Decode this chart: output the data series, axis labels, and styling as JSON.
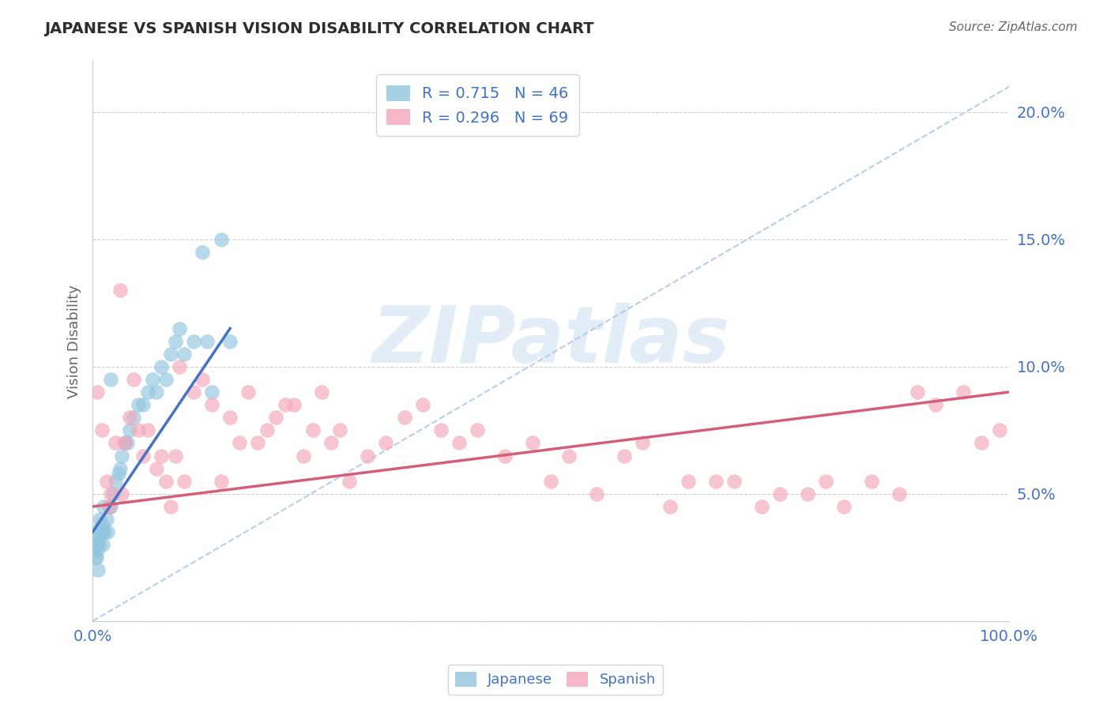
{
  "title": "JAPANESE VS SPANISH VISION DISABILITY CORRELATION CHART",
  "source_text": "Source: ZipAtlas.com",
  "ylabel": "Vision Disability",
  "xlim": [
    0,
    100
  ],
  "ylim": [
    0,
    22
  ],
  "yticks": [
    0,
    5,
    10,
    15,
    20
  ],
  "ytick_labels": [
    "",
    "5.0%",
    "10.0%",
    "15.0%",
    "20.0%"
  ],
  "xticks": [
    0,
    100
  ],
  "xtick_labels": [
    "0.0%",
    "100.0%"
  ],
  "title_color": "#2d2d2d",
  "axis_color": "#4472c4",
  "japanese_color": "#92c5de",
  "spanish_color": "#f4a7b9",
  "japanese_line_color": "#4472c4",
  "spanish_line_color": "#d45f7a",
  "dashed_line_color": "#b0c8e8",
  "grid_color": "#d0d0d0",
  "watermark_color": "#c8ddf0",
  "background_color": "#ffffff",
  "legend_japanese_label": "R = 0.715   N = 46",
  "legend_spanish_label": "R = 0.296   N = 69",
  "japanese_x": [
    0.2,
    0.3,
    0.4,
    0.5,
    0.6,
    0.7,
    0.8,
    0.9,
    1.0,
    1.1,
    1.2,
    1.3,
    1.5,
    1.6,
    1.8,
    2.0,
    2.2,
    2.5,
    2.8,
    3.0,
    3.2,
    3.5,
    3.8,
    4.0,
    4.5,
    5.0,
    5.5,
    6.0,
    6.5,
    7.0,
    7.5,
    8.0,
    8.5,
    9.0,
    9.5,
    10.0,
    11.0,
    12.0,
    12.5,
    13.0,
    14.0,
    15.0,
    0.4,
    0.6,
    1.0,
    2.0
  ],
  "japanese_y": [
    3.5,
    2.5,
    3.0,
    2.8,
    3.2,
    3.0,
    4.0,
    3.5,
    3.8,
    3.0,
    4.5,
    3.5,
    4.0,
    3.5,
    4.5,
    4.5,
    5.0,
    5.5,
    5.8,
    6.0,
    6.5,
    7.0,
    7.0,
    7.5,
    8.0,
    8.5,
    8.5,
    9.0,
    9.5,
    9.0,
    10.0,
    9.5,
    10.5,
    11.0,
    11.5,
    10.5,
    11.0,
    14.5,
    11.0,
    9.0,
    15.0,
    11.0,
    2.5,
    2.0,
    3.5,
    9.5
  ],
  "spanish_x": [
    0.5,
    1.0,
    1.5,
    2.0,
    2.5,
    3.0,
    3.5,
    4.0,
    4.5,
    5.0,
    5.5,
    6.0,
    7.0,
    7.5,
    8.0,
    9.0,
    9.5,
    10.0,
    11.0,
    12.0,
    13.0,
    14.0,
    15.0,
    16.0,
    17.0,
    18.0,
    19.0,
    20.0,
    21.0,
    22.0,
    23.0,
    24.0,
    25.0,
    26.0,
    27.0,
    28.0,
    30.0,
    32.0,
    34.0,
    36.0,
    38.0,
    40.0,
    42.0,
    45.0,
    48.0,
    50.0,
    52.0,
    55.0,
    58.0,
    60.0,
    63.0,
    65.0,
    68.0,
    70.0,
    73.0,
    75.0,
    78.0,
    80.0,
    82.0,
    85.0,
    88.0,
    90.0,
    92.0,
    95.0,
    97.0,
    99.0,
    1.8,
    3.2,
    8.5
  ],
  "spanish_y": [
    9.0,
    7.5,
    5.5,
    5.0,
    7.0,
    13.0,
    7.0,
    8.0,
    9.5,
    7.5,
    6.5,
    7.5,
    6.0,
    6.5,
    5.5,
    6.5,
    10.0,
    5.5,
    9.0,
    9.5,
    8.5,
    5.5,
    8.0,
    7.0,
    9.0,
    7.0,
    7.5,
    8.0,
    8.5,
    8.5,
    6.5,
    7.5,
    9.0,
    7.0,
    7.5,
    5.5,
    6.5,
    7.0,
    8.0,
    8.5,
    7.5,
    7.0,
    7.5,
    6.5,
    7.0,
    5.5,
    6.5,
    5.0,
    6.5,
    7.0,
    4.5,
    5.5,
    5.5,
    5.5,
    4.5,
    5.0,
    5.0,
    5.5,
    4.5,
    5.5,
    5.0,
    9.0,
    8.5,
    9.0,
    7.0,
    7.5,
    4.5,
    5.0,
    4.5
  ],
  "jap_line_x0": 0,
  "jap_line_y0": 3.5,
  "jap_line_x1": 15,
  "jap_line_y1": 11.5,
  "spa_line_x0": 0,
  "spa_line_y0": 4.5,
  "spa_line_x1": 100,
  "spa_line_y1": 9.0,
  "dashed_x0": 0,
  "dashed_y0": 0,
  "dashed_x1": 100,
  "dashed_y1": 21.0
}
